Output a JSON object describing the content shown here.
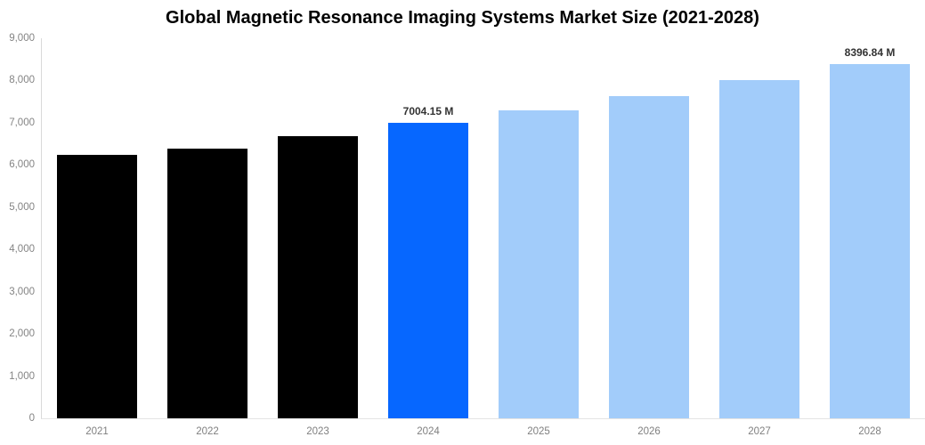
{
  "chart_data": {
    "type": "bar",
    "title": "Global Magnetic Resonance Imaging Systems Market Size (2021-2028)",
    "categories": [
      "2021",
      "2022",
      "2023",
      "2024",
      "2025",
      "2026",
      "2027",
      "2028"
    ],
    "values": [
      6230,
      6380,
      6690,
      7004.15,
      7290,
      7640,
      8000,
      8396.84
    ],
    "bar_labels": [
      "",
      "",
      "",
      "7004.15 M",
      "",
      "",
      "",
      "8396.84 M"
    ],
    "bar_colors": [
      "#000000",
      "#000000",
      "#000000",
      "#0667ff",
      "#a2ccfa",
      "#a2ccfa",
      "#a2ccfa",
      "#a2ccfa"
    ],
    "xlabel": "",
    "ylabel": "",
    "ylim": [
      0,
      9000
    ],
    "ytick_labels": [
      "0",
      "1,000",
      "2,000",
      "3,000",
      "4,000",
      "5,000",
      "6,000",
      "7,000",
      "8,000",
      "9,000"
    ],
    "grid": false,
    "legend_position": "none"
  },
  "colors": {
    "historical_bar": "#000000",
    "highlight_bar": "#0667ff",
    "forecast_bar": "#a2ccfa",
    "axis_line": "#d9d9d9",
    "tick_text": "#848484",
    "value_label_text": "#333333",
    "title_text": "#000000",
    "background": "#ffffff"
  }
}
